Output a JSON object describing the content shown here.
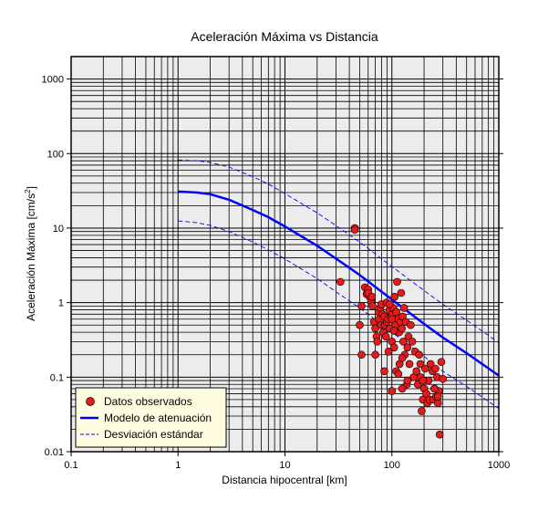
{
  "chart_data": {
    "type": "scatter",
    "title": "Aceleración Máxima vs Distancia",
    "xlabel": "Distancia hipocentral [km]",
    "ylabel_main": "Aceleración Máxima [cm/s",
    "ylabel_sup": "2",
    "ylabel_tail": "]",
    "x_scale": "log",
    "y_scale": "log",
    "xlim": [
      0.1,
      1000
    ],
    "ylim": [
      0.01,
      2000
    ],
    "x_ticks": [
      0.1,
      1,
      10,
      100,
      1000
    ],
    "x_tick_labels": [
      "0.1",
      "1",
      "10",
      "100",
      "1000"
    ],
    "y_ticks": [
      0.01,
      0.1,
      1,
      10,
      100,
      1000
    ],
    "y_tick_labels": [
      "0.01",
      "0.1",
      "1",
      "10",
      "100",
      "1000"
    ],
    "grid": true,
    "legend_position": "bottom-left",
    "colors": {
      "plot_background": "#ececec",
      "grid": "#000000",
      "points": "#e41a1c",
      "model": "#0000ff",
      "deviation": "#0000ff",
      "legend_background": "#fffde0"
    },
    "series": [
      {
        "name": "Datos observados",
        "kind": "points",
        "x": [
          45,
          45,
          33,
          52,
          56,
          58,
          60,
          62,
          64,
          66,
          68,
          70,
          72,
          73,
          75,
          76,
          78,
          79,
          80,
          82,
          83,
          85,
          86,
          88,
          89,
          90,
          92,
          93,
          95,
          96,
          98,
          100,
          101,
          103,
          105,
          106,
          108,
          110,
          112,
          115,
          117,
          118,
          120,
          122,
          124,
          126,
          128,
          130,
          132,
          135,
          138,
          140,
          143,
          146,
          150,
          155,
          160,
          165,
          170,
          175,
          180,
          185,
          190,
          195,
          200,
          205,
          210,
          215,
          220,
          225,
          230,
          240,
          245,
          250,
          255,
          260,
          265,
          270,
          275,
          280,
          290,
          300,
          52,
          70,
          85,
          100,
          110,
          50,
          60,
          65,
          95,
          105,
          115,
          125,
          185,
          195,
          250,
          270,
          100,
          125,
          140
        ],
        "y": [
          10,
          9.5,
          1.9,
          0.9,
          1.6,
          1.3,
          1.5,
          1.2,
          1.05,
          0.9,
          0.55,
          0.45,
          0.35,
          0.3,
          0.75,
          0.6,
          0.85,
          0.5,
          0.95,
          0.7,
          0.4,
          0.65,
          0.5,
          0.35,
          1.0,
          0.55,
          0.6,
          0.22,
          0.8,
          0.45,
          0.65,
          0.3,
          0.7,
          0.85,
          0.25,
          1.2,
          0.5,
          0.75,
          1.9,
          0.6,
          0.4,
          0.15,
          0.55,
          1.35,
          0.45,
          0.65,
          0.3,
          0.85,
          0.2,
          0.55,
          0.08,
          0.25,
          0.35,
          0.15,
          0.5,
          0.3,
          0.1,
          0.22,
          0.12,
          0.08,
          0.2,
          0.15,
          0.035,
          0.05,
          0.07,
          0.13,
          0.06,
          0.045,
          0.09,
          0.05,
          0.15,
          0.12,
          0.05,
          0.07,
          0.13,
          0.055,
          0.1,
          0.045,
          0.065,
          0.017,
          0.16,
          0.095,
          0.2,
          0.2,
          0.12,
          0.065,
          0.12,
          0.5,
          1.35,
          1.2,
          0.95,
          0.42,
          0.11,
          0.18,
          0.1,
          0.09,
          0.07,
          0.055,
          0.6,
          0.07,
          0.09
        ]
      },
      {
        "name": "Modelo de atenuación",
        "kind": "line",
        "x": [
          1,
          1.5,
          2,
          3,
          5,
          7,
          10,
          20,
          30,
          50,
          100,
          200,
          300,
          500,
          1000
        ],
        "y": [
          31,
          30,
          28.5,
          24,
          17.5,
          14,
          10.5,
          5.8,
          3.9,
          2.35,
          1.1,
          0.52,
          0.34,
          0.21,
          0.105
        ]
      },
      {
        "name": "Desviación estándar",
        "kind": "dashed",
        "x": [
          1,
          1.5,
          2,
          3,
          5,
          7,
          10,
          20,
          30,
          50,
          100,
          200,
          300,
          500,
          1000
        ],
        "y": [
          82,
          80,
          76,
          66,
          49,
          39,
          29,
          16,
          10.8,
          6.5,
          3.05,
          1.45,
          0.95,
          0.58,
          0.29
        ]
      },
      {
        "kind": "dashed",
        "x": [
          1,
          1.5,
          2,
          3,
          5,
          7,
          10,
          20,
          30,
          50,
          100,
          200,
          300,
          500,
          1000
        ],
        "y": [
          12.5,
          11.8,
          10.9,
          9.0,
          6.5,
          5.1,
          3.85,
          2.1,
          1.4,
          0.85,
          0.4,
          0.19,
          0.12,
          0.075,
          0.038
        ]
      }
    ]
  }
}
